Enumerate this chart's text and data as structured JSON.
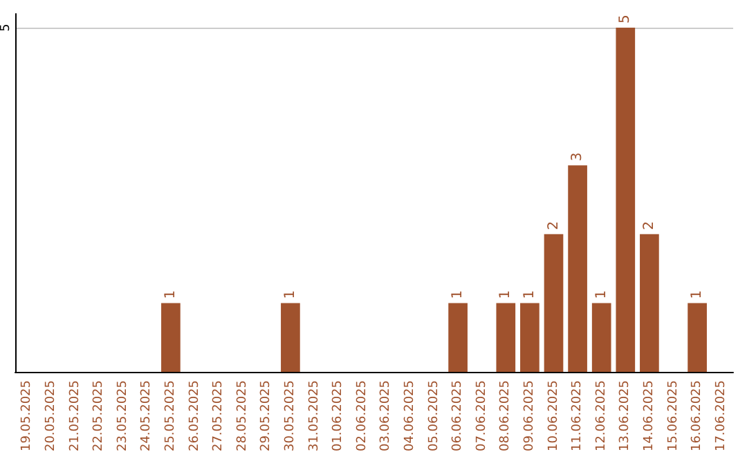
{
  "chart_data": {
    "type": "bar",
    "categories": [
      "19.05.2025",
      "20.05.2025",
      "21.05.2025",
      "22.05.2025",
      "23.05.2025",
      "24.05.2025",
      "25.05.2025",
      "26.05.2025",
      "27.05.2025",
      "28.05.2025",
      "29.05.2025",
      "30.05.2025",
      "31.05.2025",
      "01.06.2025",
      "02.06.2025",
      "03.06.2025",
      "04.06.2025",
      "05.06.2025",
      "06.06.2025",
      "07.06.2025",
      "08.06.2025",
      "09.06.2025",
      "10.06.2025",
      "11.06.2025",
      "12.06.2025",
      "13.06.2025",
      "14.06.2025",
      "15.06.2025",
      "16.06.2025",
      "17.06.2025"
    ],
    "values": [
      0,
      0,
      0,
      0,
      0,
      0,
      1,
      0,
      0,
      0,
      0,
      1,
      0,
      0,
      0,
      0,
      0,
      0,
      1,
      0,
      1,
      1,
      2,
      3,
      1,
      5,
      2,
      0,
      1,
      0
    ],
    "value_labels": [
      null,
      null,
      null,
      null,
      null,
      null,
      "1",
      null,
      null,
      null,
      null,
      "1",
      null,
      null,
      null,
      null,
      null,
      null,
      "1",
      null,
      "1",
      "1",
      "2",
      "3",
      "1",
      "5",
      "2",
      null,
      "1",
      null
    ],
    "color": "#a0522d",
    "ylim": [
      0,
      5.2
    ],
    "yticks": [
      5
    ],
    "grid": "y"
  }
}
